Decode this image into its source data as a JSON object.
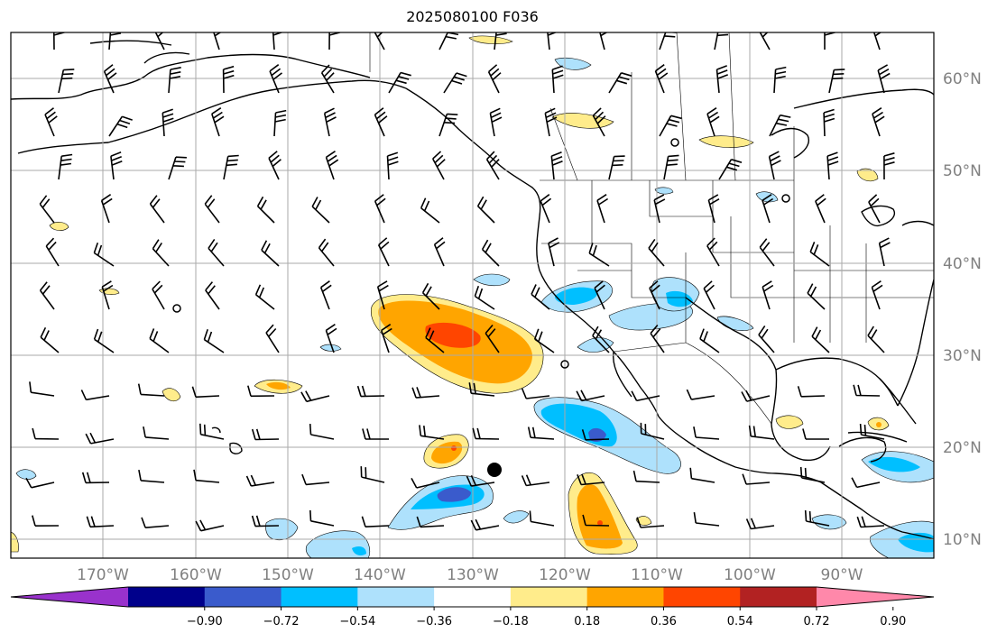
{
  "title": "2025080100 F036",
  "latitude_labels": [
    "60°N",
    "50°N",
    "40°N",
    "30°N",
    "20°N",
    "10°N"
  ],
  "longitude_labels": [
    "170°W",
    "160°W",
    "150°W",
    "140°W",
    "130°W",
    "120°W",
    "110°W",
    "100°W",
    "90°W"
  ],
  "colorbar": {
    "tick_labels": [
      "−0.90",
      "−0.72",
      "−0.54",
      "−0.36",
      "−0.18",
      "0.18",
      "0.36",
      "0.54",
      "0.72",
      "0.90"
    ],
    "colors": [
      "#9932cc",
      "#00008b",
      "#3a5bcc",
      "#00bfff",
      "#aee1fc",
      "#ffffff",
      "#ffec8b",
      "#ffa500",
      "#ff4500",
      "#b22222",
      "#ff88aa"
    ]
  },
  "map": {
    "projection": "PlateCarree",
    "lon_range": [
      -180,
      -80
    ],
    "lat_range": [
      8,
      65
    ],
    "gridlines": true,
    "field_colors": {
      "light_blue": "#aee1fc",
      "blue": "#00bfff",
      "medium_blue": "#3a5bcc",
      "yellow": "#ffec8b",
      "orange": "#ffa500",
      "red": "#ff4500"
    },
    "markers": [
      "filled-circle",
      "open-circle"
    ]
  }
}
